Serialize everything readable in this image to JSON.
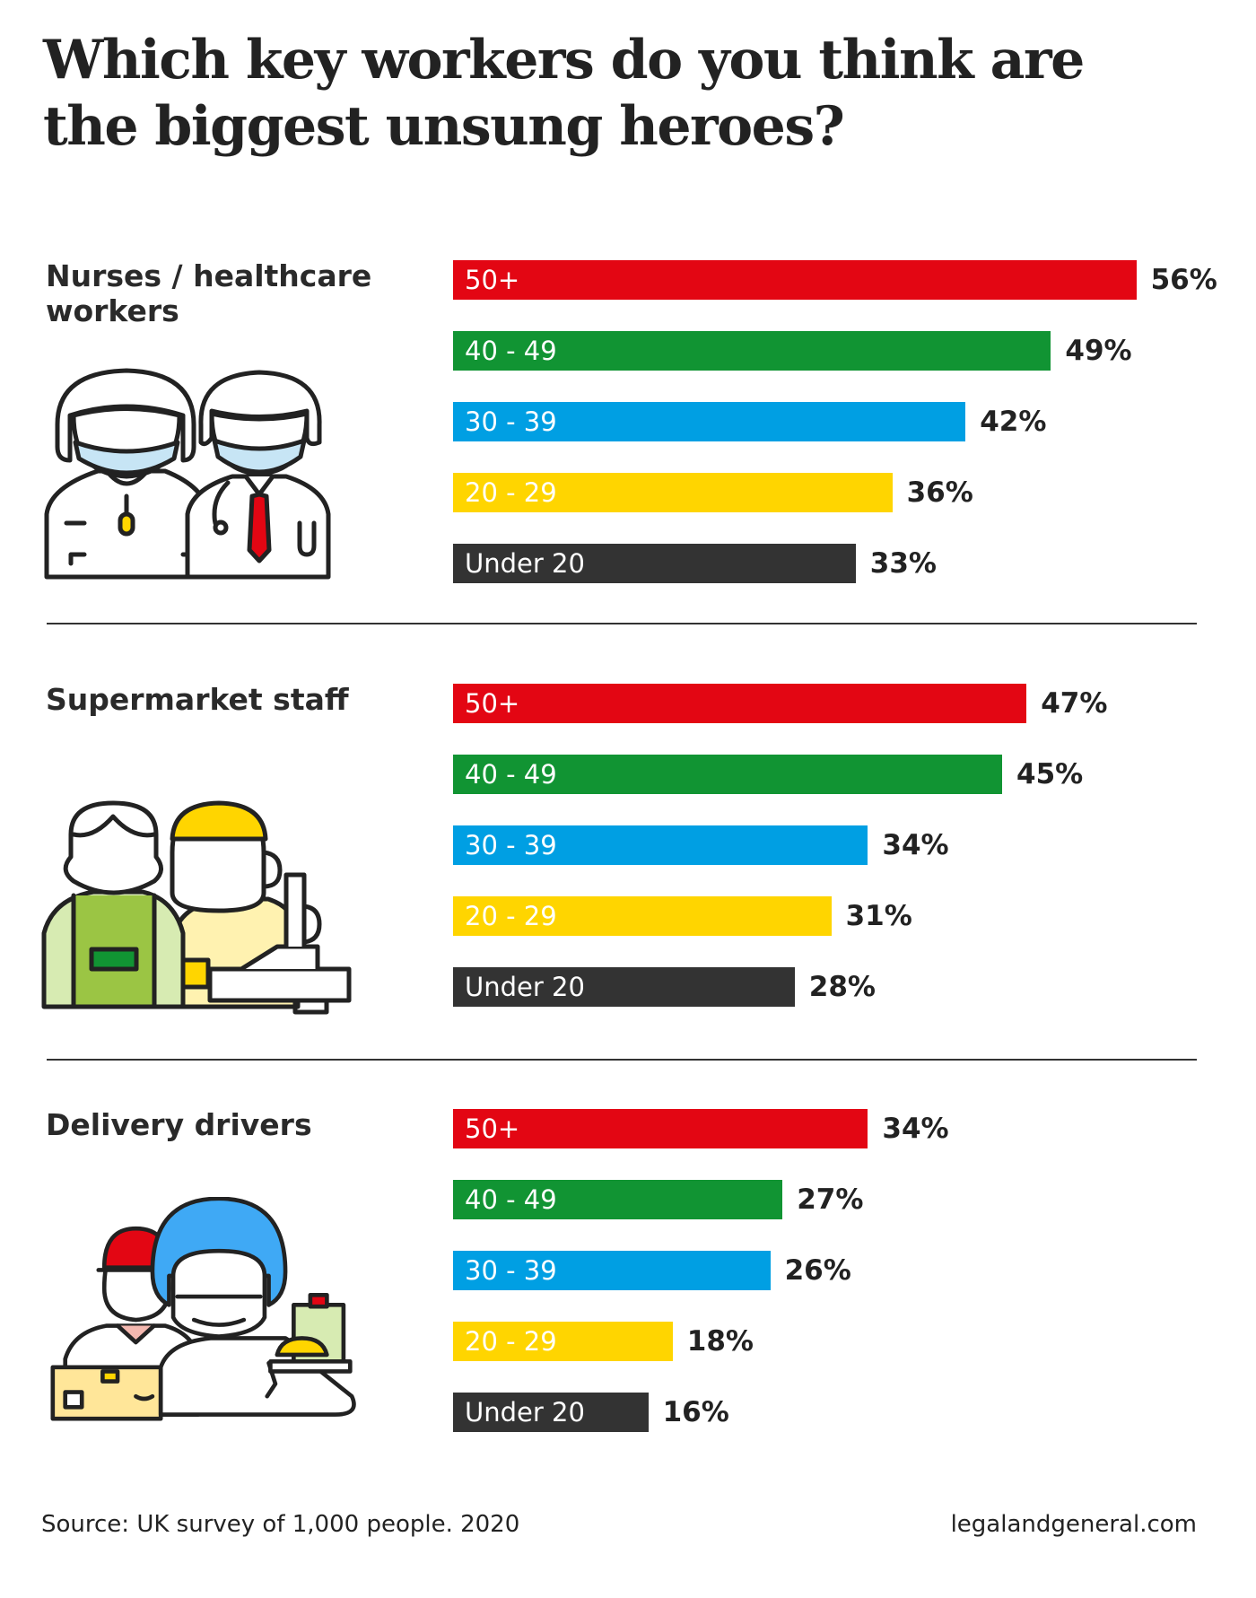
{
  "title": "Which key workers do you think are the biggest unsung heroes?",
  "colors": {
    "50+": "#e30613",
    "40 - 49": "#119433",
    "30 - 39": "#009fe3",
    "20 - 29": "#ffd500",
    "Under 20": "#333333"
  },
  "chart_data": [
    {
      "type": "bar",
      "title": "Nurses / healthcare workers",
      "categories": [
        "50+",
        "40 - 49",
        "30 - 39",
        "20 - 29",
        "Under 20"
      ],
      "values": [
        56,
        49,
        42,
        36,
        33
      ],
      "value_labels": [
        "56%",
        "49%",
        "42%",
        "36%",
        "33%"
      ],
      "illustration": "healthcare-workers-icon"
    },
    {
      "type": "bar",
      "title": "Supermarket staff",
      "categories": [
        "50+",
        "40 - 49",
        "30 - 39",
        "20 - 29",
        "Under 20"
      ],
      "values": [
        47,
        45,
        34,
        31,
        28
      ],
      "value_labels": [
        "47%",
        "45%",
        "34%",
        "31%",
        "28%"
      ],
      "illustration": "supermarket-staff-icon"
    },
    {
      "type": "bar",
      "title": "Delivery drivers",
      "categories": [
        "50+",
        "40 - 49",
        "30 - 39",
        "20 - 29",
        "Under 20"
      ],
      "values": [
        34,
        27,
        26,
        18,
        16
      ],
      "value_labels": [
        "34%",
        "27%",
        "26%",
        "18%",
        "16%"
      ],
      "illustration": "delivery-drivers-icon"
    }
  ],
  "footer": {
    "source": "Source: UK survey of 1,000 people. 2020",
    "website": "legalandgeneral.com"
  }
}
